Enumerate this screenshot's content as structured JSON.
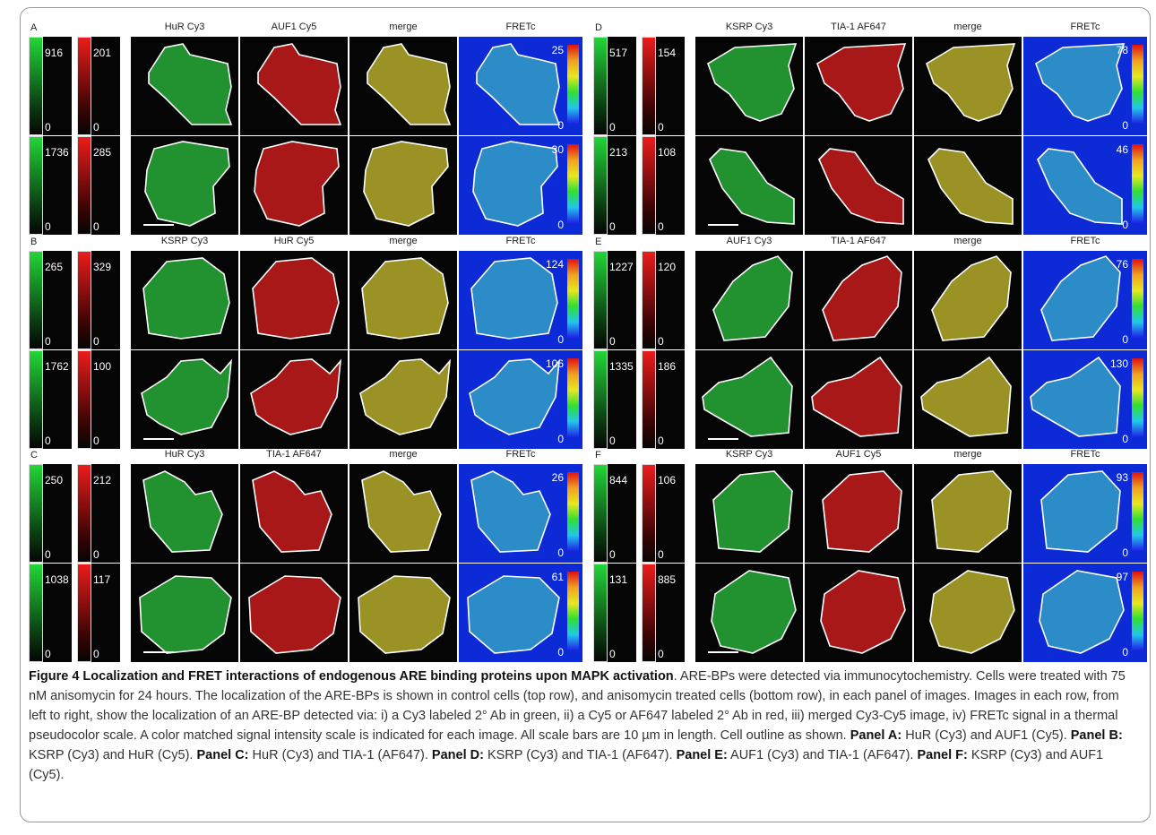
{
  "colors": {
    "green": "#22d838",
    "red": "#ee1c1c",
    "fret_background": "#0c2bd6"
  },
  "figure": {
    "panels": [
      {
        "letter": "A",
        "headers": [
          "HuR Cy3",
          "AUF1 Cy5",
          "merge",
          "FRETc"
        ],
        "rows": [
          {
            "green_max": "916",
            "green_min": "0",
            "red_max": "201",
            "red_min": "0",
            "fret_max": "25",
            "fret_min": "0"
          },
          {
            "green_max": "1736",
            "green_min": "0",
            "red_max": "285",
            "red_min": "0",
            "fret_max": "30",
            "fret_min": "0"
          }
        ]
      },
      {
        "letter": "D",
        "headers": [
          "KSRP Cy3",
          "TIA-1 AF647",
          "merge",
          "FRETc"
        ],
        "rows": [
          {
            "green_max": "517",
            "green_min": "0",
            "red_max": "154",
            "red_min": "0",
            "fret_max": "78",
            "fret_min": "0"
          },
          {
            "green_max": "213",
            "green_min": "0",
            "red_max": "108",
            "red_min": "0",
            "fret_max": "46",
            "fret_min": "0"
          }
        ]
      },
      {
        "letter": "B",
        "headers": [
          "KSRP Cy3",
          "HuR Cy5",
          "merge",
          "FRETc"
        ],
        "rows": [
          {
            "green_max": "265",
            "green_min": "0",
            "red_max": "329",
            "red_min": "0",
            "fret_max": "124",
            "fret_min": "0"
          },
          {
            "green_max": "1762",
            "green_min": "0",
            "red_max": "100",
            "red_min": "0",
            "fret_max": "106",
            "fret_min": "0"
          }
        ]
      },
      {
        "letter": "E",
        "headers": [
          "AUF1 Cy3",
          "TIA-1 AF647",
          "merge",
          "FRETc"
        ],
        "rows": [
          {
            "green_max": "1227",
            "green_min": "0",
            "red_max": "120",
            "red_min": "0",
            "fret_max": "76",
            "fret_min": "0"
          },
          {
            "green_max": "1335",
            "green_min": "0",
            "red_max": "186",
            "red_min": "0",
            "fret_max": "130",
            "fret_min": "0"
          }
        ]
      },
      {
        "letter": "C",
        "headers": [
          "HuR Cy3",
          "TIA-1 AF647",
          "merge",
          "FRETc"
        ],
        "rows": [
          {
            "green_max": "250",
            "green_min": "0",
            "red_max": "212",
            "red_min": "0",
            "fret_max": "26",
            "fret_min": "0"
          },
          {
            "green_max": "1038",
            "green_min": "0",
            "red_max": "117",
            "red_min": "0",
            "fret_max": "61",
            "fret_min": "0"
          }
        ]
      },
      {
        "letter": "F",
        "headers": [
          "KSRP Cy3",
          "AUF1 Cy5",
          "merge",
          "FRETc"
        ],
        "rows": [
          {
            "green_max": "844",
            "green_min": "0",
            "red_max": "106",
            "red_min": "0",
            "fret_max": "93",
            "fret_min": "0"
          },
          {
            "green_max": "131",
            "green_min": "0",
            "red_max": "885",
            "red_min": "0",
            "fret_max": "97",
            "fret_min": "0"
          }
        ]
      }
    ]
  },
  "caption": {
    "title": "Figure 4 Localization and FRET interactions of endogenous ARE binding proteins upon MAPK activation",
    "body": ". ARE-BPs were detected via immunocytochemistry. Cells were treated with 75 nM anisomycin for 24 hours. The localization of the ARE-BPs is shown in control cells (top row), and anisomycin treated cells (bottom row), in each panel of images. Images in each row, from left to right, show the localization of an ARE-BP detected via: i) a Cy3 labeled 2° Ab in green, ii) a Cy5 or AF647 labeled 2° Ab in red, iii) merged Cy3-Cy5 image, iv) FRETc signal in a thermal pseudocolor scale. A color matched signal intensity scale is indicated for each image. All scale bars are 10 µm in length. Cell outline as shown. ",
    "parts": [
      {
        "label": "Panel A:",
        "text": " HuR (Cy3) and AUF1 (Cy5). "
      },
      {
        "label": "Panel B:",
        "text": " KSRP (Cy3) and HuR (Cy5). "
      },
      {
        "label": "Panel C:",
        "text": " HuR (Cy3) and TIA-1 (AF647). "
      },
      {
        "label": "Panel D:",
        "text": " KSRP (Cy3) and TIA-1 (AF647). "
      },
      {
        "label": "Panel E:",
        "text": " AUF1 (Cy3) and TIA-1 (AF647). "
      },
      {
        "label": "Panel F:",
        "text": " KSRP (Cy3) and AUF1 (Cy5)."
      }
    ]
  }
}
